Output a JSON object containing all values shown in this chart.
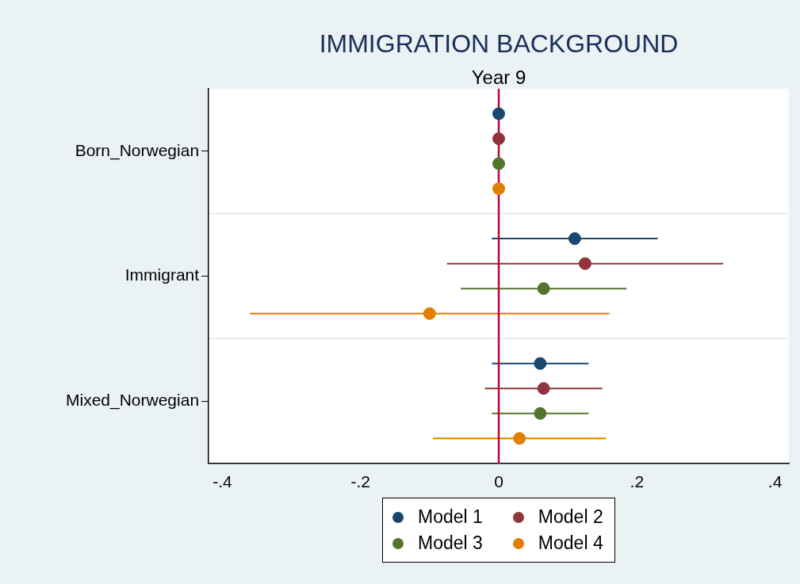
{
  "chart_data": {
    "type": "scatter",
    "title": "IMMIGRATION BACKGROUND",
    "subtitle": "Year 9",
    "orientation": "horizontal",
    "categories": [
      "Born_Norwegian",
      "Immigrant",
      "Mixed_Norwegian"
    ],
    "series": [
      {
        "name": "Model 1",
        "color": "#1a476f",
        "values": [
          0,
          0.11,
          0.06
        ],
        "errors": [
          null,
          [
            -0.01,
            0.23
          ],
          [
            -0.01,
            0.13
          ]
        ]
      },
      {
        "name": "Model 2",
        "color": "#90353b",
        "values": [
          0,
          0.125,
          0.065
        ],
        "errors": [
          null,
          [
            -0.075,
            0.325
          ],
          [
            -0.02,
            0.15
          ]
        ]
      },
      {
        "name": "Model 3",
        "color": "#55752f",
        "values": [
          0,
          0.065,
          0.06
        ],
        "errors": [
          null,
          [
            -0.055,
            0.185
          ],
          [
            -0.01,
            0.13
          ]
        ]
      },
      {
        "name": "Model 4",
        "color": "#e37e00",
        "values": [
          0,
          -0.1,
          0.03
        ],
        "errors": [
          null,
          [
            -0.36,
            0.16
          ],
          [
            -0.095,
            0.155
          ]
        ]
      }
    ],
    "xlim": [
      -0.42,
      0.42
    ],
    "xticks": [
      {
        "value": -0.4,
        "label": "-.4"
      },
      {
        "value": -0.2,
        "label": "-.2"
      },
      0,
      {
        "value": 0.2,
        "label": ".2"
      },
      {
        "value": 0.4,
        "label": ".4"
      }
    ],
    "ref_lines": [
      {
        "axis": "x",
        "value": 0,
        "color": "#c10534"
      }
    ],
    "grid": "y",
    "legend": "bottom",
    "marker": "circle"
  }
}
